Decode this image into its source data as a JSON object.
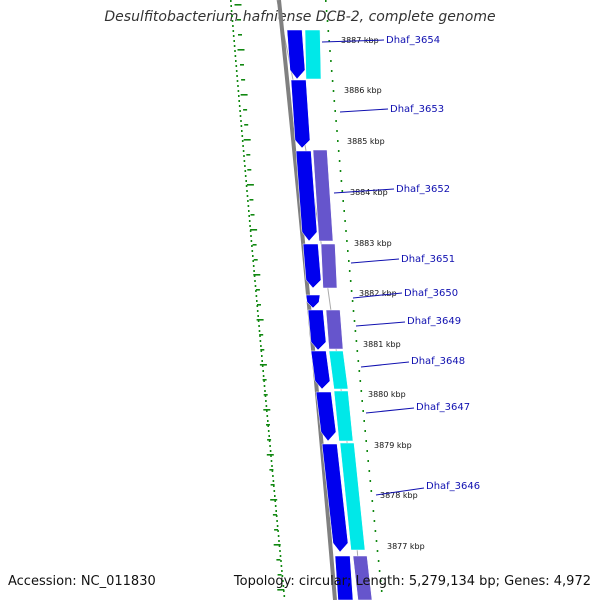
{
  "title": "Desulfitobacterium hafniense DCB-2, complete genome",
  "accession_text": "Accession: NC_011830",
  "summary_text": "Topology: circular; Length: 5,279,134 bp; Genes: 4,972",
  "colors": {
    "background": "#ffffff",
    "backbone": "#808080",
    "cds_forward": "#0000ee",
    "cds_reverse_a": "#6655cc",
    "cds_reverse_b": "#00e8e8",
    "gc_skew": "#118811",
    "gene_label": "#1010b0",
    "kbp_text": "#111111"
  },
  "kbp_labels": [
    "3887 kbp",
    "3886 kbp",
    "3885 kbp",
    "3884 kbp",
    "3883 kbp",
    "3882 kbp",
    "3881 kbp",
    "3880 kbp",
    "3879 kbp",
    "3878 kbp",
    "3877 kbp"
  ],
  "genes": [
    {
      "name": "Dhaf_3654",
      "strand_color": "#00e8e8"
    },
    {
      "name": "Dhaf_3653",
      "strand_color": "#0000ee"
    },
    {
      "name": "Dhaf_3652",
      "strand_color": "#6655cc"
    },
    {
      "name": "Dhaf_3651",
      "strand_color": "#6655cc"
    },
    {
      "name": "Dhaf_3650",
      "strand_color": "#0000ee"
    },
    {
      "name": "Dhaf_3649",
      "strand_color": "#6655cc"
    },
    {
      "name": "Dhaf_3648",
      "strand_color": "#00e8e8"
    },
    {
      "name": "Dhaf_3647",
      "strand_color": "#00e8e8"
    },
    {
      "name": "Dhaf_3646",
      "strand_color": "#00e8e8"
    }
  ]
}
